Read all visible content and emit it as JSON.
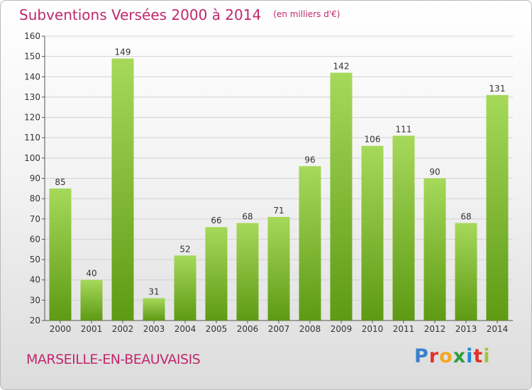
{
  "header": {
    "title": "Subventions Versées 2000 à 2014",
    "unit": "(en milliers d'€)"
  },
  "footer": {
    "commune": "MARSEILLE-EN-BEAUVAISIS",
    "logo_letters": [
      "P",
      "r",
      "o",
      "x",
      "i",
      "t",
      "i"
    ],
    "logo_colors": [
      "#3a7fd0",
      "#e2332b",
      "#f5a623",
      "#2e9e3e",
      "#1e88d8",
      "#e2332b",
      "#9fc63b"
    ]
  },
  "chart_data": {
    "type": "bar",
    "categories": [
      "2000",
      "2001",
      "2002",
      "2003",
      "2004",
      "2005",
      "2006",
      "2007",
      "2008",
      "2009",
      "2010",
      "2011",
      "2012",
      "2013",
      "2014"
    ],
    "values": [
      85,
      40,
      149,
      31,
      52,
      66,
      68,
      71,
      96,
      142,
      106,
      111,
      90,
      68,
      131
    ],
    "ylim": [
      20,
      160
    ],
    "yticks": [
      20,
      30,
      40,
      50,
      60,
      70,
      80,
      90,
      100,
      110,
      120,
      130,
      140,
      150,
      160
    ],
    "grid": true,
    "bar_color_top": "#a6d95a",
    "bar_color_bottom": "#5e9a14",
    "title": "Subventions Versées 2000 à 2014",
    "xlabel": "",
    "ylabel": ""
  }
}
